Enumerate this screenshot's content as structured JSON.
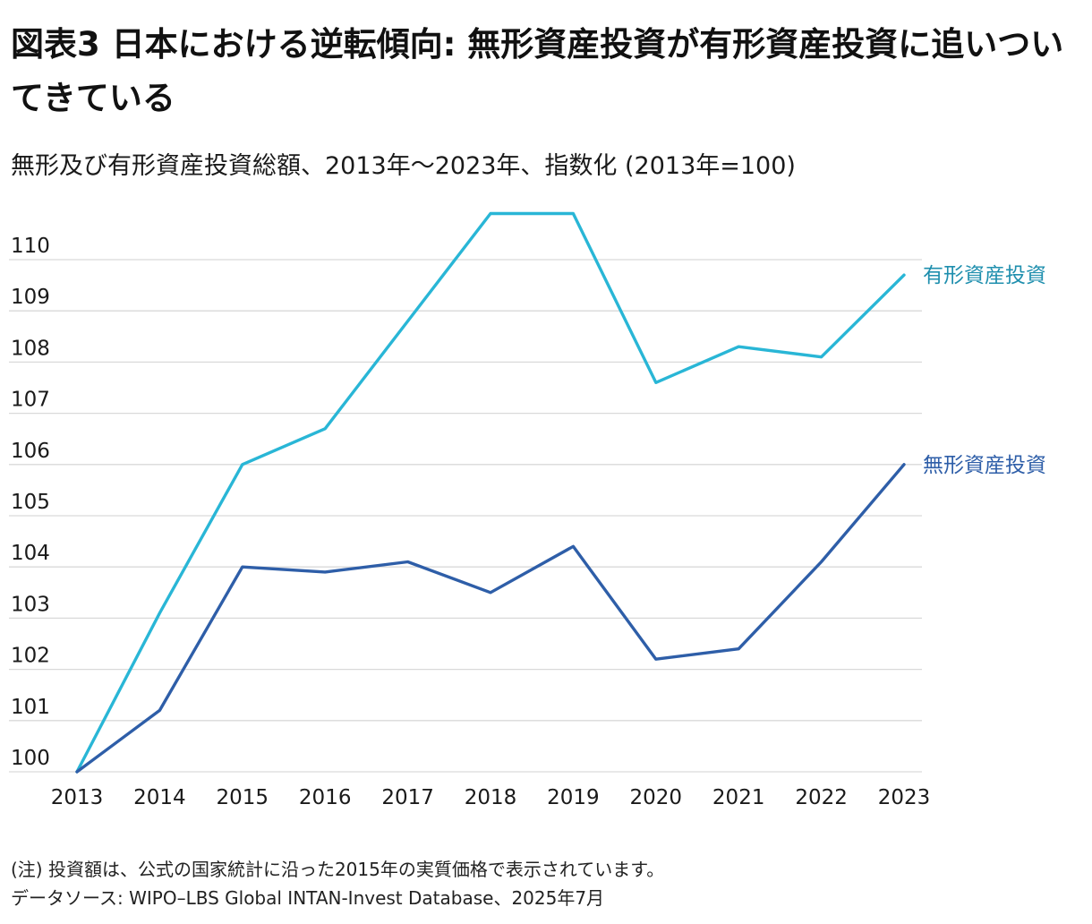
{
  "title": "図表3 日本における逆転傾向: 無形資産投資が有形資産投資に追いついてきている",
  "subtitle": "無形及び有形資産投資総額、2013年〜2023年、指数化 (2013年=100)",
  "note": "(注) 投資額は、公式の国家統計に沿った2015年の実質価格で表示されています。",
  "source": "データソース: WIPO–LBS Global INTAN-Invest Database、2025年7月",
  "colors": {
    "tangible": "#29b6d6",
    "intangible": "#2e5ea8",
    "grid": "#d9d9d9",
    "tangible_label": "#1f8fae"
  },
  "chart_data": {
    "type": "line",
    "title": "図表3 日本における逆転傾向: 無形資産投資が有形資産投資に追いついてきている",
    "subtitle": "無形及び有形資産投資総額、2013年〜2023年、指数化 (2013年=100)",
    "x": [
      "2013",
      "2014",
      "2015",
      "2016",
      "2017",
      "2018",
      "2019",
      "2020",
      "2021",
      "2022",
      "2023"
    ],
    "yticks": [
      "100",
      "101",
      "102",
      "103",
      "104",
      "105",
      "106",
      "107",
      "108",
      "109",
      "110"
    ],
    "ylim": [
      100,
      110.6
    ],
    "grid": true,
    "legend": "direct-labels-right",
    "series": [
      {
        "name": "有形資産投資",
        "color": "#29b6d6",
        "values": [
          100.0,
          103.1,
          106.0,
          106.7,
          108.8,
          110.9,
          110.9,
          107.6,
          108.3,
          108.1,
          109.7
        ]
      },
      {
        "name": "無形資産投資",
        "color": "#2e5ea8",
        "values": [
          100.0,
          101.2,
          104.0,
          103.9,
          104.1,
          103.5,
          104.4,
          102.2,
          102.4,
          104.1,
          106.0
        ]
      }
    ]
  }
}
